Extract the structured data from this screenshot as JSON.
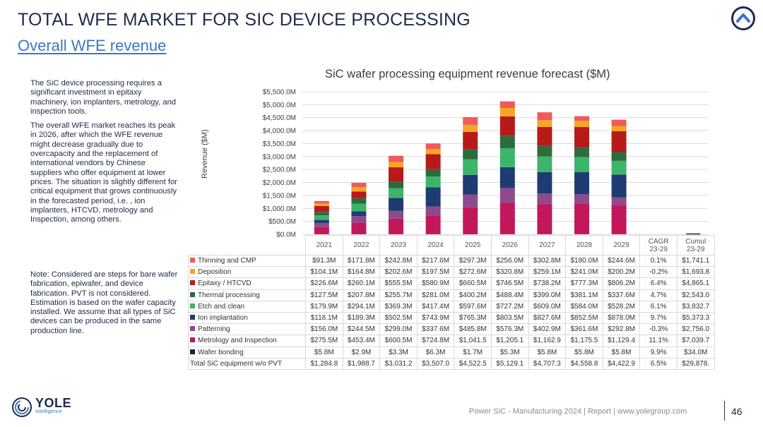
{
  "header": {
    "title": "TOTAL WFE MARKET FOR SIC DEVICE PROCESSING",
    "subtitle": "Overall WFE revenue"
  },
  "left_text": {
    "p1": "The SiC device processing requires a significant investment in epitaxy machinery, ion implanters, metrology, and inspection tools.",
    "p2": "The overall WFE market reaches its peak in 2026, after which the WFE revenue might decrease gradually due to overcapacity and the replacement of international vendors by Chinese suppliers who offer equipment at lower prices. The situation is slightly different for critical equipment that grows continuously in the forecasted period, i.e. , ion implanters, HTCVD, metrology and Inspection, among others.",
    "note": "Note: Considered are steps for bare wafer fabrication, epiwafer, and device fabrication. PVT is not considered.  Estimation is based on the wafer capacity installed. We assume that all types of SiC devices can be produced in the same production line."
  },
  "chart_data": {
    "type": "bar",
    "stacked": true,
    "title": "SiC wafer processing equipment revenue forecast ($M)",
    "ylabel": "Revenue ($M)",
    "ylim": [
      0,
      5500
    ],
    "yticks": [
      0,
      500,
      1000,
      1500,
      2000,
      2500,
      3000,
      3500,
      4000,
      4500,
      5000,
      5500
    ],
    "ytick_labels": [
      "$0.0M",
      "$500.0M",
      "$1,000.0M",
      "$1,500.0M",
      "$2,000.0M",
      "$2,500.0M",
      "$3,000.0M",
      "$3,500.0M",
      "$4,000.0M",
      "$4,500.0M",
      "$5,000.0M",
      "$5,500.0M"
    ],
    "categories": [
      "2021",
      "2022",
      "2023",
      "2024",
      "2025",
      "2026",
      "2027",
      "2028",
      "2029"
    ],
    "extra_headers": [
      "CAGR 23-29",
      "Cumul 23-29"
    ],
    "grid": true,
    "series": [
      {
        "name": "Wafer bonding",
        "color": "#1c2340",
        "values": [
          5.8,
          2.9,
          3.3,
          6.3,
          1.7,
          5.3,
          5.8,
          5.8,
          5.8
        ],
        "labels": [
          "$5.8M",
          "$2.9M",
          "$3.3M",
          "$6.3M",
          "$1.7M",
          "$5.3M",
          "$5.8M",
          "$5.8M",
          "$5.8M"
        ],
        "cagr": "9.9%",
        "cumul": "$34.0M"
      },
      {
        "name": "Metrology and Inspection",
        "color": "#c2185b",
        "values": [
          275.5,
          453.4,
          600.5,
          724.8,
          1041.5,
          1205.1,
          1162.9,
          1175.5,
          1129.4
        ],
        "labels": [
          "$275.5M",
          "$453.4M",
          "$600.5M",
          "$724.8M",
          "$1,041.5",
          "$1,205.1",
          "$1,162.9",
          "$1,175.5",
          "$1,129.4"
        ],
        "cagr": "11.1%",
        "cumul": "$7,039.7"
      },
      {
        "name": "Patterning",
        "color": "#8e4a8c",
        "values": [
          156.0,
          244.5,
          299.0,
          337.6,
          485.8,
          576.3,
          402.9,
          361.6,
          292.8
        ],
        "labels": [
          "$156.0M",
          "$244.5M",
          "$299.0M",
          "$337.6M",
          "$485.8M",
          "$576.3M",
          "$402.9M",
          "$361.6M",
          "$292.8M"
        ],
        "cagr": "-0.3%",
        "cumul": "$2,756.0"
      },
      {
        "name": "Ion implantation",
        "color": "#1f3b73",
        "values": [
          118.1,
          189.3,
          502.5,
          743.9,
          765.3,
          803.5,
          827.6,
          852.5,
          878.0
        ],
        "labels": [
          "$118.1M",
          "$189.3M",
          "$502.5M",
          "$743.9M",
          "$765.3M",
          "$803.5M",
          "$827.6M",
          "$852.5M",
          "$878.0M"
        ],
        "cagr": "9.7%",
        "cumul": "$5,373.3"
      },
      {
        "name": "Etch and clean",
        "color": "#3cb56a",
        "values": [
          179.9,
          294.1,
          369.3,
          417.4,
          597.6,
          727.2,
          609.0,
          584.0,
          528.2
        ],
        "labels": [
          "$179.9M",
          "$294.1M",
          "$369.3M",
          "$417.4M",
          "$597.6M",
          "$727.2M",
          "$609.0M",
          "$584.0M",
          "$528.2M"
        ],
        "cagr": "6.1%",
        "cumul": "$3,832.7"
      },
      {
        "name": "Thermal processing",
        "color": "#2e6b40",
        "values": [
          127.5,
          207.8,
          255.7,
          281.0,
          400.2,
          488.4,
          399.0,
          381.1,
          337.6
        ],
        "labels": [
          "$127.5M",
          "$207.8M",
          "$255.7M",
          "$281.0M",
          "$400.2M",
          "$488.4M",
          "$399.0M",
          "$381.1M",
          "$337.6M"
        ],
        "cagr": "4.7%",
        "cumul": "$2,543.0"
      },
      {
        "name": "Epitaxy / HTCVD",
        "color": "#b81a1a",
        "values": [
          226.6,
          260.1,
          555.5,
          580.9,
          660.5,
          746.5,
          738.2,
          777.3,
          806.2
        ],
        "labels": [
          "$226.6M",
          "$260.1M",
          "$555.5M",
          "$580.9M",
          "$660.5M",
          "$746.5M",
          "$738.2M",
          "$777.3M",
          "$806.2M"
        ],
        "cagr": "6.4%",
        "cumul": "$4,865.1"
      },
      {
        "name": "Deposition",
        "color": "#f5a623",
        "values": [
          104.1,
          164.8,
          202.6,
          197.5,
          272.6,
          320.8,
          259.1,
          241.0,
          200.2
        ],
        "labels": [
          "$104.1M",
          "$164.8M",
          "$202.6M",
          "$197.5M",
          "$272.6M",
          "$320.8M",
          "$259.1M",
          "$241.0M",
          "$200.2M"
        ],
        "cagr": "-0.2%",
        "cumul": "$1,693.8"
      },
      {
        "name": "Thinning and CMP",
        "color": "#ef5b5b",
        "values": [
          91.3,
          171.8,
          242.8,
          217.6,
          297.3,
          256.0,
          302.8,
          180.0,
          244.6
        ],
        "labels": [
          "$91.3M",
          "$171.8M",
          "$242.8M",
          "$217.6M",
          "$297.3M",
          "$256.0M",
          "$302.8M",
          "$180.0M",
          "$244.6M"
        ],
        "cagr": "0.1%",
        "cumul": "$1,741.1"
      }
    ],
    "total_row": {
      "name": "Total SiC equipment w/o PVT",
      "values": [
        1284.8,
        1988.7,
        3031.2,
        3507.0,
        4522.5,
        5129.1,
        4707.3,
        4558.8,
        4422.9
      ],
      "labels": [
        "$1,284.8",
        "$1,988.7",
        "$3,031.2",
        "$3,507.0",
        "$4,522.5",
        "$5,129.1",
        "$4,707.3",
        "$4,558.8",
        "$4,422.9"
      ],
      "cagr": "6.5%",
      "cumul": "$29,878."
    }
  },
  "footer": {
    "logo_main": "YOLE",
    "logo_sub": "Intelligence",
    "text": "Power SiC - Manufacturing 2024 | Report | www.yolegroup.com",
    "page": "46"
  },
  "icons": {
    "nav": "chevron-up-circle-icon",
    "logo": "yole-spiral-logo-icon"
  }
}
